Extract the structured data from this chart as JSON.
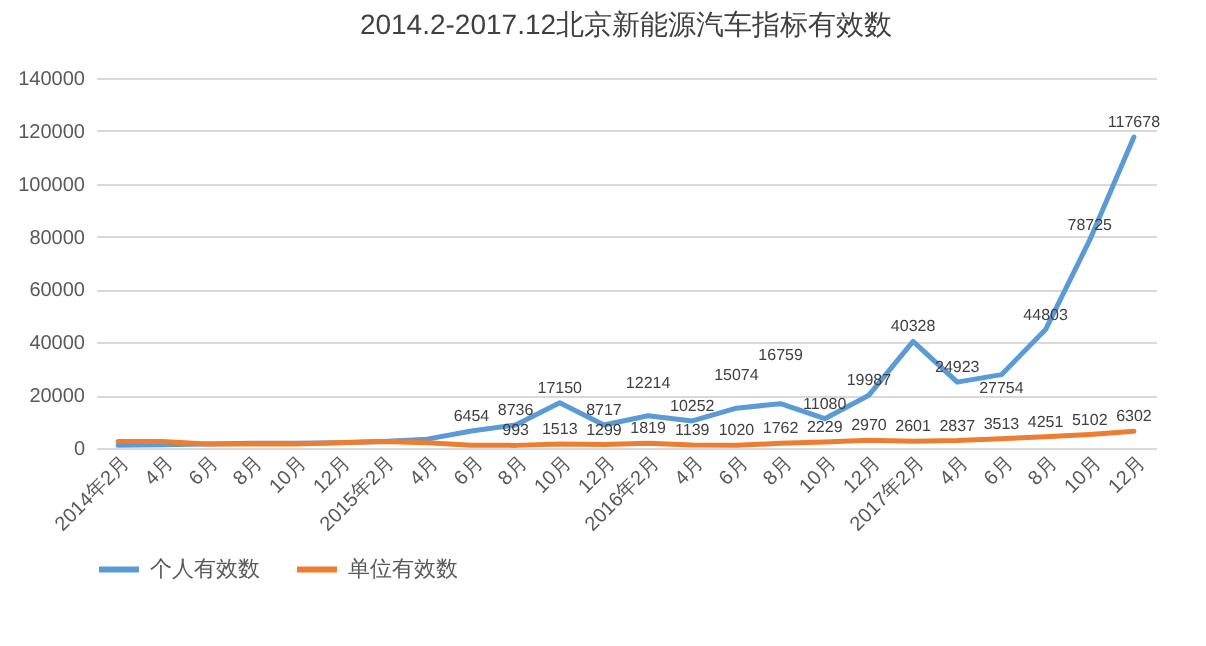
{
  "chart_data": {
    "type": "line",
    "title": "2014.2-2017.12北京新能源汽车指标有效数",
    "categories": [
      "2014年2月",
      "4月",
      "6月",
      "8月",
      "10月",
      "12月",
      "2015年2月",
      "4月",
      "6月",
      "8月",
      "10月",
      "12月",
      "2016年2月",
      "4月",
      "6月",
      "8月",
      "10月",
      "12月",
      "2017年2月",
      "4月",
      "6月",
      "8月",
      "10月",
      "12月"
    ],
    "series": [
      {
        "name": "个人有效数",
        "color": "#5b9bd5",
        "values": [
          1000,
          1200,
          1500,
          1800,
          1800,
          2000,
          2500,
          3356,
          6454,
          8736,
          17150,
          8717,
          12214,
          10252,
          15074,
          16759,
          11080,
          19987,
          40328,
          24923,
          27754,
          44803,
          78725,
          117678
        ],
        "value_labels": [
          null,
          null,
          null,
          null,
          null,
          null,
          null,
          null,
          "6454",
          "8736",
          "17150",
          "8717",
          "12214",
          "10252",
          "15074",
          "16759",
          "11080",
          "19987",
          "40328",
          "24923",
          "27754",
          "44803",
          "78725",
          "117678"
        ]
      },
      {
        "name": "单位有效数",
        "color": "#ed7d31",
        "values": [
          2500,
          2500,
          1500,
          1500,
          1500,
          2000,
          2500,
          2000,
          1000,
          993,
          1513,
          1299,
          1819,
          1139,
          1020,
          1762,
          2229,
          2970,
          2601,
          2837,
          3513,
          4251,
          5102,
          6302
        ],
        "value_labels": [
          null,
          null,
          null,
          null,
          null,
          null,
          null,
          null,
          null,
          "993",
          "1513",
          "1299",
          "1819",
          "1139",
          "1020",
          "1762",
          "2229",
          "2970",
          "2601",
          "2837",
          "3513",
          "4251",
          "5102",
          "6302"
        ]
      }
    ],
    "ylim": [
      0,
      140000
    ],
    "yticks": [
      0,
      20000,
      40000,
      60000,
      80000,
      100000,
      120000,
      140000
    ],
    "grid": "y",
    "legend": "bottom",
    "marker": "none",
    "line_style": "solid"
  }
}
